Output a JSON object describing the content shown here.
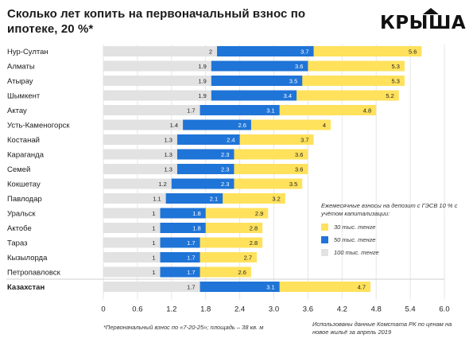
{
  "header": {
    "title": "Сколько лет копить на первоначальный взнос по ипотеке, 20 %*",
    "logo": "КРЫША"
  },
  "colors": {
    "s100": "#e2e2e2",
    "s50": "#1f74d7",
    "s30": "#ffe15c",
    "grid": "#e6e6e6",
    "text": "#1a1a1a"
  },
  "legend": {
    "title": "Ежемесячные взносы на депозит с ГЭСВ 10 % с учётом капитализации:",
    "items": [
      {
        "label": "30 тыс. тенге",
        "color": "#ffe15c"
      },
      {
        "label": "50 тыс. тенге",
        "color": "#1f74d7"
      },
      {
        "label": "100 тыс. тенге",
        "color": "#e2e2e2"
      }
    ]
  },
  "footnote": "*Первоначальный взнос по «7-20-25»; площадь – 38 кв. м",
  "source": "Использованы данные Комстата РК по ценам на новое жильё за апрель 2019",
  "chart_data": {
    "type": "bar",
    "orientation": "horizontal",
    "stacking": "overlay",
    "categories": [
      "Нур-Султан",
      "Алматы",
      "Атырау",
      "Шымкент",
      "Актау",
      "Усть-Каменогорск",
      "Костанай",
      "Караганда",
      "Семей",
      "Кокшетау",
      "Павлодар",
      "Уральск",
      "Актобе",
      "Тараз",
      "Кызылорда",
      "Петропавловск",
      "Казахстан"
    ],
    "highlight_category": "Казахстан",
    "series": [
      {
        "name": "30 тыс. тенге",
        "values": [
          5.6,
          5.3,
          5.3,
          5.2,
          4.8,
          4,
          3.7,
          3.6,
          3.6,
          3.5,
          3.2,
          2.9,
          2.8,
          2.8,
          2.7,
          2.6,
          4.7
        ]
      },
      {
        "name": "50 тыс. тенге",
        "values": [
          3.7,
          3.6,
          3.5,
          3.4,
          3.1,
          2.6,
          2.4,
          2.3,
          2.3,
          2.3,
          2.1,
          1.8,
          1.8,
          1.7,
          1.7,
          1.7,
          3.1
        ]
      },
      {
        "name": "100 тыс. тенге",
        "values": [
          2,
          1.9,
          1.9,
          1.9,
          1.7,
          1.4,
          1.3,
          1.3,
          1.3,
          1.2,
          1.1,
          1,
          1,
          1,
          1,
          1,
          1.7
        ]
      }
    ],
    "xlim": [
      0,
      6.0
    ],
    "xticks": [
      "0",
      "0.6",
      "1.2",
      "1.8",
      "2.4",
      "3.0",
      "3.6",
      "4.2",
      "4.8",
      "5.4",
      "6.0"
    ],
    "grid": true,
    "legend_position": "right"
  }
}
